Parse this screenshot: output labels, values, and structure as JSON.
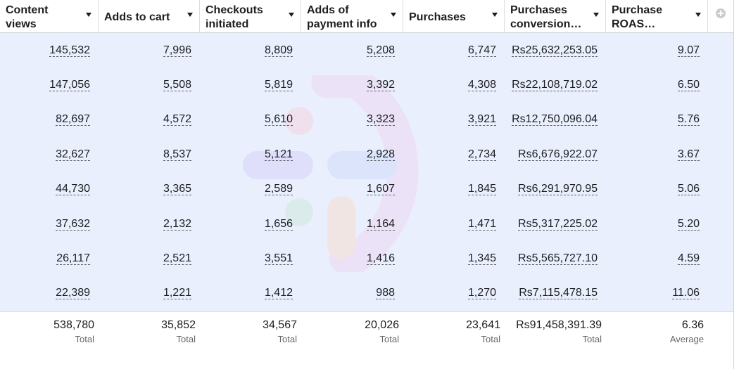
{
  "columns": [
    {
      "label": "Content views",
      "width": 140
    },
    {
      "label": "Adds to cart",
      "width": 144
    },
    {
      "label": "Checkouts initiated",
      "width": 144
    },
    {
      "label": "Adds of payment info",
      "width": 145
    },
    {
      "label": "Purchases",
      "width": 144
    },
    {
      "label": "Purchases conversion…",
      "width": 144
    },
    {
      "label": "Purchase ROAS (retur…",
      "width": 145
    }
  ],
  "rows": [
    [
      "145,532",
      "7,996",
      "8,809",
      "5,208",
      "6,747",
      "Rs25,632,253.05",
      "9.07"
    ],
    [
      "147,056",
      "5,508",
      "5,819",
      "3,392",
      "4,308",
      "Rs22,108,719.02",
      "6.50"
    ],
    [
      "82,697",
      "4,572",
      "5,610",
      "3,323",
      "3,921",
      "Rs12,750,096.04",
      "5.76"
    ],
    [
      "32,627",
      "8,537",
      "5,121",
      "2,928",
      "2,734",
      "Rs6,676,922.07",
      "3.67"
    ],
    [
      "44,730",
      "3,365",
      "2,589",
      "1,607",
      "1,845",
      "Rs6,291,970.95",
      "5.06"
    ],
    [
      "37,632",
      "2,132",
      "1,656",
      "1,164",
      "1,471",
      "Rs5,317,225.02",
      "5.20"
    ],
    [
      "26,117",
      "2,521",
      "3,551",
      "1,416",
      "1,345",
      "Rs5,565,727.10",
      "4.59"
    ],
    [
      "22,389",
      "1,221",
      "1,412",
      "988",
      "1,270",
      "Rs7,115,478.15",
      "11.06"
    ]
  ],
  "totals": [
    {
      "value": "538,780",
      "label": "Total"
    },
    {
      "value": "35,852",
      "label": "Total"
    },
    {
      "value": "34,567",
      "label": "Total"
    },
    {
      "value": "20,026",
      "label": "Total"
    },
    {
      "value": "23,641",
      "label": "Total"
    },
    {
      "value": "Rs91,458,391.39",
      "label": "Total"
    },
    {
      "value": "6.36",
      "label": "Average"
    }
  ],
  "icons": {
    "sort": "caret-down-icon",
    "add_column": "plus-circle-icon"
  },
  "colors": {
    "body_bg": "#eaeffd",
    "text": "#1c1e21",
    "muted": "#65676b"
  }
}
